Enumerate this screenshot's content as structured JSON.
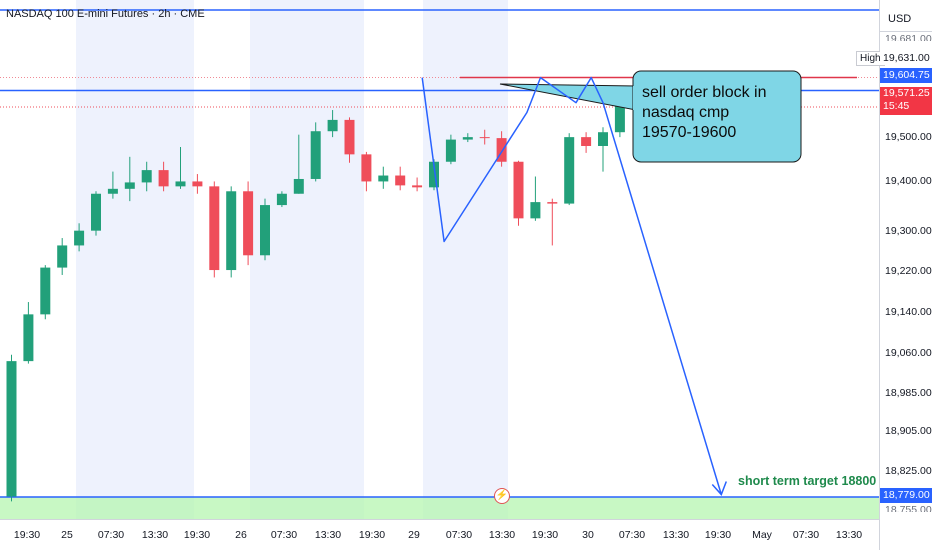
{
  "header": {
    "title": "NASDAQ 100 E-mini Futures · 2h · CME",
    "currency": "USD"
  },
  "colors": {
    "up": "#22a07a",
    "down": "#ef4d5a",
    "drawing": "#2962ff",
    "callout_fill": "#7fd6e6",
    "resistance": "#e0364a",
    "target_zone": "#b5f5b0"
  },
  "annotations": {
    "callout_lines": [
      "sell order block in",
      "nasdaq cmp",
      "19570-19600"
    ],
    "target_label": "short term target 18800",
    "high_tag": "High"
  },
  "price_badges": {
    "high": "19,631.00",
    "line_level": "19,604.75",
    "last_price": "19,571.25",
    "countdown": "15:45",
    "target": "18,779.00"
  },
  "chart_data": {
    "type": "candlestick",
    "title": "NASDAQ 100 E-mini Futures · 2h · CME",
    "y_axis_labels": [
      "19,500.00",
      "19,400.00",
      "19,300.00",
      "19,220.00",
      "19,140.00",
      "19,060.00",
      "18,985.00",
      "18,905.00",
      "18,825.00"
    ],
    "y_axis_partial_labels": [
      "19,681.00",
      "18,755.00"
    ],
    "x_axis_labels": [
      "19:30",
      "25",
      "07:30",
      "13:30",
      "19:30",
      "26",
      "07:30",
      "13:30",
      "19:30",
      "29",
      "07:30",
      "13:30",
      "19:30",
      "30",
      "07:30",
      "13:30",
      "19:30",
      "May",
      "07:30",
      "13:30"
    ],
    "candles": [
      {
        "o": 18780,
        "h": 19068,
        "l": 18770,
        "c": 19055
      },
      {
        "o": 19055,
        "h": 19175,
        "l": 19050,
        "c": 19150
      },
      {
        "o": 19150,
        "h": 19250,
        "l": 19140,
        "c": 19245
      },
      {
        "o": 19245,
        "h": 19305,
        "l": 19230,
        "c": 19290
      },
      {
        "o": 19290,
        "h": 19335,
        "l": 19278,
        "c": 19320
      },
      {
        "o": 19320,
        "h": 19400,
        "l": 19310,
        "c": 19395
      },
      {
        "o": 19395,
        "h": 19440,
        "l": 19385,
        "c": 19405
      },
      {
        "o": 19405,
        "h": 19470,
        "l": 19380,
        "c": 19418
      },
      {
        "o": 19418,
        "h": 19460,
        "l": 19400,
        "c": 19443
      },
      {
        "o": 19443,
        "h": 19460,
        "l": 19400,
        "c": 19410
      },
      {
        "o": 19410,
        "h": 19490,
        "l": 19405,
        "c": 19420
      },
      {
        "o": 19420,
        "h": 19435,
        "l": 19395,
        "c": 19410
      },
      {
        "o": 19410,
        "h": 19420,
        "l": 19225,
        "c": 19240
      },
      {
        "o": 19240,
        "h": 19410,
        "l": 19225,
        "c": 19400
      },
      {
        "o": 19400,
        "h": 19420,
        "l": 19250,
        "c": 19270
      },
      {
        "o": 19270,
        "h": 19385,
        "l": 19260,
        "c": 19372
      },
      {
        "o": 19372,
        "h": 19400,
        "l": 19368,
        "c": 19395
      },
      {
        "o": 19395,
        "h": 19515,
        "l": 19395,
        "c": 19425
      },
      {
        "o": 19425,
        "h": 19540,
        "l": 19420,
        "c": 19522
      },
      {
        "o": 19522,
        "h": 19565,
        "l": 19510,
        "c": 19545
      },
      {
        "o": 19545,
        "h": 19550,
        "l": 19458,
        "c": 19475
      },
      {
        "o": 19475,
        "h": 19480,
        "l": 19400,
        "c": 19420
      },
      {
        "o": 19420,
        "h": 19450,
        "l": 19405,
        "c": 19432
      },
      {
        "o": 19432,
        "h": 19450,
        "l": 19402,
        "c": 19412
      },
      {
        "o": 19412,
        "h": 19428,
        "l": 19400,
        "c": 19408
      },
      {
        "o": 19408,
        "h": 19465,
        "l": 19402,
        "c": 19460
      },
      {
        "o": 19460,
        "h": 19515,
        "l": 19455,
        "c": 19505
      },
      {
        "o": 19505,
        "h": 19518,
        "l": 19500,
        "c": 19510
      },
      {
        "o": 19510,
        "h": 19525,
        "l": 19495,
        "c": 19508
      },
      {
        "o": 19508,
        "h": 19522,
        "l": 19450,
        "c": 19460
      },
      {
        "o": 19460,
        "h": 19462,
        "l": 19330,
        "c": 19345
      },
      {
        "o": 19345,
        "h": 19430,
        "l": 19340,
        "c": 19378
      },
      {
        "o": 19378,
        "h": 19385,
        "l": 19290,
        "c": 19375
      },
      {
        "o": 19375,
        "h": 19518,
        "l": 19372,
        "c": 19510
      },
      {
        "o": 19510,
        "h": 19520,
        "l": 19478,
        "c": 19492
      },
      {
        "o": 19492,
        "h": 19530,
        "l": 19440,
        "c": 19520
      },
      {
        "o": 19520,
        "h": 19610,
        "l": 19510,
        "c": 19600
      },
      {
        "o": 19600,
        "h": 19615,
        "l": 19570,
        "c": 19580
      },
      {
        "o": 19580,
        "h": 19595,
        "l": 19538,
        "c": 19545
      },
      {
        "o": 19545,
        "h": 19631,
        "l": 19540,
        "c": 19625
      },
      {
        "o": 19625,
        "h": 19630,
        "l": 19566,
        "c": 19571
      }
    ],
    "levels": {
      "high": 19631.0,
      "marked_level": 19604.75,
      "last_price": 19571.25,
      "target": 18779.0
    },
    "zigzag_path": [
      {
        "bar": 24.3,
        "price": 19631
      },
      {
        "bar": 25.6,
        "price": 19298
      },
      {
        "bar": 30.5,
        "price": 19560
      },
      {
        "bar": 31.3,
        "price": 19631
      },
      {
        "bar": 33.4,
        "price": 19580
      },
      {
        "bar": 34.3,
        "price": 19631
      },
      {
        "bar": 35.0,
        "price": 19580
      },
      {
        "bar": 42.0,
        "price": 18784
      }
    ],
    "session_shading": true,
    "grid": false,
    "legend": "none"
  }
}
